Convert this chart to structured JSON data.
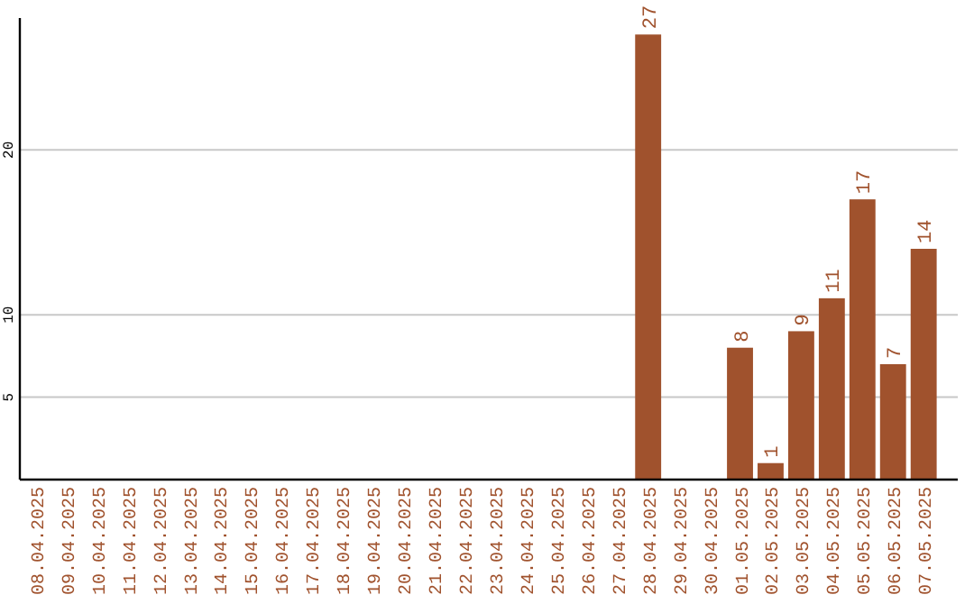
{
  "chart_data": {
    "type": "bar",
    "categories": [
      "08.04.2025",
      "09.04.2025",
      "10.04.2025",
      "11.04.2025",
      "12.04.2025",
      "13.04.2025",
      "14.04.2025",
      "15.04.2025",
      "16.04.2025",
      "17.04.2025",
      "18.04.2025",
      "19.04.2025",
      "20.04.2025",
      "21.04.2025",
      "22.04.2025",
      "23.04.2025",
      "24.04.2025",
      "25.04.2025",
      "26.04.2025",
      "27.04.2025",
      "28.04.2025",
      "29.04.2025",
      "30.04.2025",
      "01.05.2025",
      "02.05.2025",
      "03.05.2025",
      "04.05.2025",
      "05.05.2025",
      "06.05.2025",
      "07.05.2025"
    ],
    "values": [
      0,
      0,
      0,
      0,
      0,
      0,
      0,
      0,
      0,
      0,
      0,
      0,
      0,
      0,
      0,
      0,
      0,
      0,
      0,
      0,
      27,
      0,
      0,
      8,
      1,
      9,
      11,
      17,
      7,
      14
    ],
    "value_labels": [
      null,
      null,
      null,
      null,
      null,
      null,
      null,
      null,
      null,
      null,
      null,
      null,
      null,
      null,
      null,
      null,
      null,
      null,
      null,
      null,
      "27",
      null,
      null,
      "8",
      "1",
      "9",
      "11",
      "17",
      "7",
      "14"
    ],
    "color": "#a0522d",
    "ylim": [
      0,
      28
    ],
    "yticks": [
      5,
      10,
      20
    ],
    "grid": "y"
  }
}
